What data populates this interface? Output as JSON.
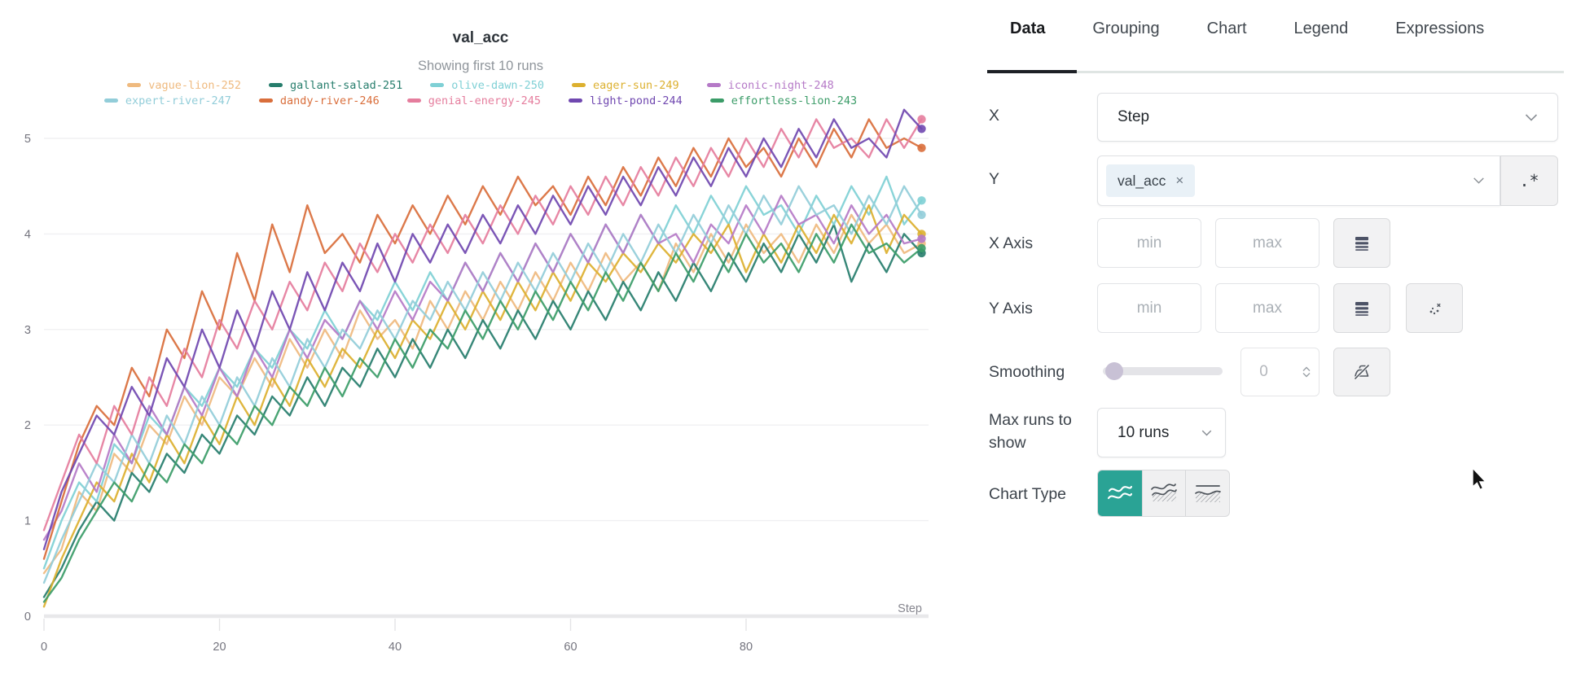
{
  "chart_data": {
    "type": "line",
    "title": "val_acc",
    "subtitle": "Showing first 10 runs",
    "xlabel": "Step",
    "ylabel": "",
    "xlim": [
      0,
      100
    ],
    "ylim": [
      0,
      5
    ],
    "xticks": [
      0,
      20,
      40,
      60,
      80
    ],
    "yticks": [
      0,
      1,
      2,
      3,
      4,
      5
    ],
    "grid": "horizontal-only",
    "legend_position": "top",
    "x": [
      0,
      2,
      4,
      6,
      8,
      10,
      12,
      14,
      16,
      18,
      20,
      22,
      24,
      26,
      28,
      30,
      32,
      34,
      36,
      38,
      40,
      42,
      44,
      46,
      48,
      50,
      52,
      54,
      56,
      58,
      60,
      62,
      64,
      66,
      68,
      70,
      72,
      74,
      76,
      78,
      80,
      82,
      84,
      86,
      88,
      90,
      92,
      94,
      96,
      98,
      100
    ],
    "series": [
      {
        "name": "vague-lion-252",
        "color": "#efba7f",
        "values": [
          0.45,
          0.7,
          1.3,
          1.1,
          1.7,
          1.5,
          2.0,
          1.8,
          2.3,
          2.0,
          2.5,
          2.3,
          2.7,
          2.4,
          2.9,
          2.6,
          3.0,
          2.7,
          3.2,
          2.9,
          3.1,
          2.8,
          3.3,
          3.0,
          3.4,
          3.1,
          3.5,
          3.2,
          3.6,
          3.3,
          3.7,
          3.4,
          3.8,
          3.5,
          3.7,
          3.4,
          3.9,
          3.6,
          4.0,
          3.7,
          4.1,
          3.8,
          4.0,
          3.7,
          4.1,
          3.8,
          4.2,
          3.9,
          4.1,
          3.8,
          3.9
        ]
      },
      {
        "name": "gallant-salad-251",
        "color": "#267d6c",
        "values": [
          0.2,
          0.5,
          0.9,
          1.2,
          1.0,
          1.5,
          1.3,
          1.7,
          1.5,
          1.9,
          1.7,
          2.1,
          1.9,
          2.3,
          2.1,
          2.5,
          2.2,
          2.6,
          2.4,
          2.8,
          2.5,
          2.9,
          2.6,
          3.0,
          2.7,
          3.1,
          2.8,
          3.2,
          2.9,
          3.3,
          3.0,
          3.4,
          3.1,
          3.5,
          3.2,
          3.6,
          3.3,
          3.7,
          3.4,
          3.8,
          3.5,
          3.9,
          3.6,
          4.0,
          3.7,
          4.1,
          3.5,
          3.9,
          3.6,
          4.0,
          3.8
        ]
      },
      {
        "name": "olive-dawn-250",
        "color": "#7fd0d5",
        "values": [
          0.5,
          1.0,
          1.4,
          1.2,
          1.8,
          1.6,
          2.1,
          1.9,
          2.4,
          2.2,
          2.6,
          2.4,
          2.8,
          2.6,
          3.0,
          2.8,
          3.2,
          2.9,
          3.3,
          3.1,
          3.5,
          3.2,
          3.6,
          3.3,
          3.7,
          3.4,
          3.8,
          3.5,
          3.9,
          3.6,
          4.0,
          3.7,
          4.1,
          3.8,
          4.2,
          3.9,
          4.3,
          4.0,
          4.4,
          4.1,
          4.5,
          4.2,
          4.3,
          4.0,
          4.4,
          4.1,
          4.5,
          4.2,
          4.6,
          4.1,
          4.35
        ]
      },
      {
        "name": "eager-sun-249",
        "color": "#dcb02f",
        "values": [
          0.1,
          0.6,
          1.0,
          1.4,
          1.2,
          1.7,
          1.4,
          1.9,
          1.6,
          2.1,
          1.8,
          2.3,
          2.0,
          2.5,
          2.2,
          2.7,
          2.4,
          2.8,
          2.6,
          3.0,
          2.7,
          3.1,
          2.9,
          3.3,
          3.0,
          3.4,
          3.1,
          3.5,
          3.2,
          3.6,
          3.3,
          3.7,
          3.5,
          3.8,
          3.6,
          3.9,
          3.7,
          4.0,
          3.8,
          4.1,
          3.6,
          4.0,
          3.7,
          4.1,
          3.8,
          4.2,
          3.9,
          4.3,
          3.8,
          4.2,
          4.0
        ]
      },
      {
        "name": "iconic-night-248",
        "color": "#b579c7",
        "values": [
          0.8,
          1.1,
          1.6,
          1.3,
          1.9,
          1.6,
          2.2,
          1.9,
          2.4,
          2.1,
          2.6,
          2.3,
          2.8,
          2.5,
          3.0,
          2.7,
          3.1,
          2.9,
          3.3,
          3.0,
          3.4,
          3.1,
          3.5,
          3.3,
          3.7,
          3.4,
          3.8,
          3.5,
          3.9,
          3.6,
          4.0,
          3.7,
          4.1,
          3.8,
          4.2,
          3.9,
          4.0,
          3.7,
          4.1,
          3.9,
          4.3,
          4.0,
          4.4,
          4.1,
          4.2,
          3.9,
          4.3,
          4.0,
          4.2,
          3.9,
          3.95
        ]
      },
      {
        "name": "expert-river-247",
        "color": "#92cdd9",
        "values": [
          0.35,
          0.8,
          1.2,
          1.6,
          1.4,
          1.9,
          1.6,
          2.1,
          1.8,
          2.3,
          2.0,
          2.5,
          2.2,
          2.7,
          2.4,
          2.9,
          2.6,
          3.0,
          2.8,
          3.2,
          2.9,
          3.3,
          3.1,
          3.5,
          3.2,
          3.6,
          3.3,
          3.7,
          3.4,
          3.8,
          3.5,
          3.9,
          3.6,
          4.0,
          3.7,
          4.1,
          3.8,
          4.2,
          3.9,
          4.3,
          4.0,
          4.4,
          4.1,
          4.5,
          4.2,
          4.3,
          4.0,
          4.4,
          4.1,
          4.5,
          4.2
        ]
      },
      {
        "name": "dandy-river-246",
        "color": "#d96e3b",
        "values": [
          0.6,
          1.2,
          1.8,
          2.2,
          2.0,
          2.6,
          2.3,
          3.0,
          2.7,
          3.4,
          3.0,
          3.8,
          3.3,
          4.1,
          3.6,
          4.3,
          3.8,
          4.0,
          3.7,
          4.2,
          3.9,
          4.3,
          4.0,
          4.4,
          4.1,
          4.5,
          4.2,
          4.6,
          4.3,
          4.5,
          4.2,
          4.6,
          4.3,
          4.7,
          4.4,
          4.8,
          4.5,
          4.9,
          4.6,
          5.0,
          4.7,
          4.9,
          4.6,
          5.0,
          4.7,
          5.1,
          4.8,
          5.2,
          4.9,
          5.0,
          4.9
        ]
      },
      {
        "name": "genial-energy-245",
        "color": "#e57d9d",
        "values": [
          0.9,
          1.4,
          1.9,
          1.6,
          2.2,
          1.9,
          2.5,
          2.2,
          2.8,
          2.5,
          3.1,
          2.8,
          3.3,
          3.0,
          3.5,
          3.2,
          3.7,
          3.4,
          3.9,
          3.6,
          4.0,
          3.7,
          4.1,
          3.8,
          4.2,
          3.9,
          4.3,
          4.0,
          4.4,
          4.1,
          4.5,
          4.2,
          4.6,
          4.3,
          4.7,
          4.4,
          4.8,
          4.5,
          4.9,
          4.6,
          5.0,
          4.7,
          5.1,
          4.8,
          5.2,
          4.9,
          5.0,
          4.8,
          5.2,
          4.9,
          5.2
        ]
      },
      {
        "name": "light-pond-244",
        "color": "#7048b0",
        "values": [
          0.7,
          1.3,
          1.7,
          2.1,
          1.9,
          2.4,
          2.1,
          2.7,
          2.4,
          3.0,
          2.6,
          3.2,
          2.8,
          3.4,
          3.0,
          3.6,
          3.2,
          3.7,
          3.4,
          3.9,
          3.5,
          4.0,
          3.7,
          4.1,
          3.8,
          4.2,
          3.9,
          4.3,
          4.0,
          4.4,
          4.1,
          4.5,
          4.2,
          4.6,
          4.3,
          4.7,
          4.4,
          4.8,
          4.5,
          4.9,
          4.6,
          5.0,
          4.7,
          5.1,
          4.8,
          5.2,
          4.9,
          5.0,
          4.8,
          5.3,
          5.1
        ]
      },
      {
        "name": "effortless-lion-243",
        "color": "#3b9c68",
        "values": [
          0.15,
          0.4,
          0.8,
          1.1,
          1.4,
          1.2,
          1.6,
          1.4,
          1.8,
          1.6,
          2.0,
          1.8,
          2.2,
          2.0,
          2.4,
          2.2,
          2.6,
          2.3,
          2.7,
          2.5,
          2.9,
          2.6,
          3.0,
          2.8,
          3.2,
          2.9,
          3.3,
          3.0,
          3.4,
          3.1,
          3.5,
          3.2,
          3.6,
          3.3,
          3.7,
          3.4,
          3.8,
          3.5,
          3.9,
          3.6,
          4.0,
          3.7,
          3.9,
          3.6,
          4.0,
          3.7,
          4.1,
          3.8,
          3.9,
          3.7,
          3.85
        ]
      }
    ]
  },
  "panel": {
    "tabs": [
      {
        "label": "Data"
      },
      {
        "label": "Grouping"
      },
      {
        "label": "Chart"
      },
      {
        "label": "Legend"
      },
      {
        "label": "Expressions"
      }
    ],
    "x_row": {
      "label": "X",
      "value": "Step"
    },
    "y_row": {
      "label": "Y",
      "chip": "val_acc",
      "regex_label": ".*"
    },
    "x_axis": {
      "label": "X Axis",
      "min_placeholder": "min",
      "max_placeholder": "max"
    },
    "y_axis": {
      "label": "Y Axis",
      "min_placeholder": "min",
      "max_placeholder": "max"
    },
    "smoothing": {
      "label": "Smoothing",
      "value": "0"
    },
    "max_runs": {
      "label": "Max runs to show",
      "value": "10 runs"
    },
    "chart_type": {
      "label": "Chart Type"
    }
  },
  "icons": {
    "remove_chip": "×"
  },
  "ui_colors": {
    "accent_teal": "#2aa395",
    "chip_bg": "#e9f1f7",
    "slider_handle": "#c8c1d5",
    "tab_active_underline": "#1d2025"
  }
}
